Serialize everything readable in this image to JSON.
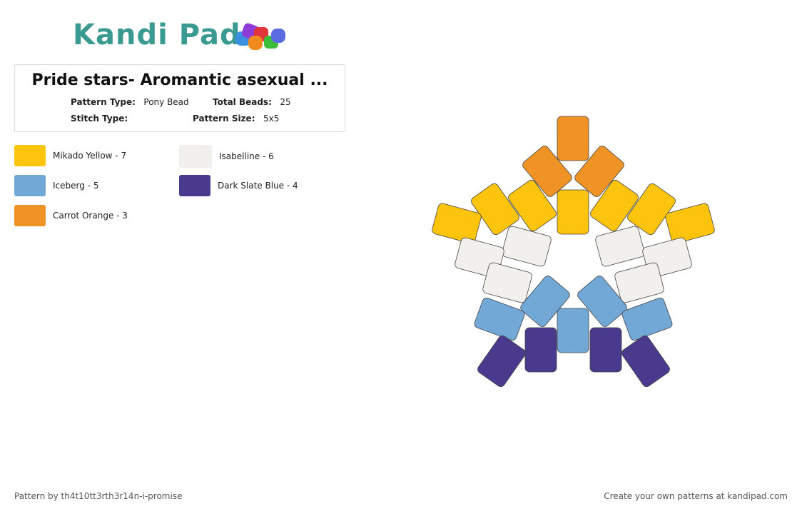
{
  "header": {
    "logo": "Kandi Pad"
  },
  "pattern": {
    "title": "Pride stars- Aromantic  asexual ...",
    "fields": [
      {
        "label": "Pattern Type:",
        "value": "Pony Bead"
      },
      {
        "label": "Total Beads:",
        "value": "25"
      },
      {
        "label": "Stitch Type:",
        "value": ""
      },
      {
        "label": "Pattern Size:",
        "value": "5x5"
      }
    ]
  },
  "legend": [
    {
      "label": "Mikado Yellow - 7",
      "color": "#fdc40e"
    },
    {
      "label": "Isabelline - 6",
      "color": "#f2f0ec"
    },
    {
      "label": "Iceberg - 5",
      "color": "#72a8d6"
    },
    {
      "label": "Dark Slate Blue - 4",
      "color": "#4a3a8d"
    },
    {
      "label": "Carrot Orange - 3",
      "color": "#ef9424"
    }
  ],
  "beads": [
    {
      "color": "#ef9424"
    },
    {
      "color": "#ef9424"
    },
    {
      "color": "#ef9424"
    },
    {
      "color": "#fdc40e"
    },
    {
      "color": "#fdc40e"
    },
    {
      "color": "#fdc40e"
    },
    {
      "color": "#fdc40e"
    },
    {
      "color": "#fdc40e"
    },
    {
      "color": "#fdc40e"
    },
    {
      "color": "#fdc40e"
    },
    {
      "color": "#f2f0ec"
    },
    {
      "color": "#f2f0ec"
    },
    {
      "color": "#f2f0ec"
    },
    {
      "color": "#f2f0ec"
    },
    {
      "color": "#f2f0ec"
    },
    {
      "color": "#f2f0ec"
    },
    {
      "color": "#72a8d6"
    },
    {
      "color": "#72a8d6"
    },
    {
      "color": "#72a8d6"
    },
    {
      "color": "#72a8d6"
    },
    {
      "color": "#72a8d6"
    },
    {
      "color": "#4a3a8d"
    },
    {
      "color": "#4a3a8d"
    },
    {
      "color": "#4a3a8d"
    },
    {
      "color": "#4a3a8d"
    }
  ],
  "footer": {
    "left": "Pattern by th4t10tt3rth3r14n-i-promise",
    "right": "Create your own patterns at kandipad.com"
  }
}
